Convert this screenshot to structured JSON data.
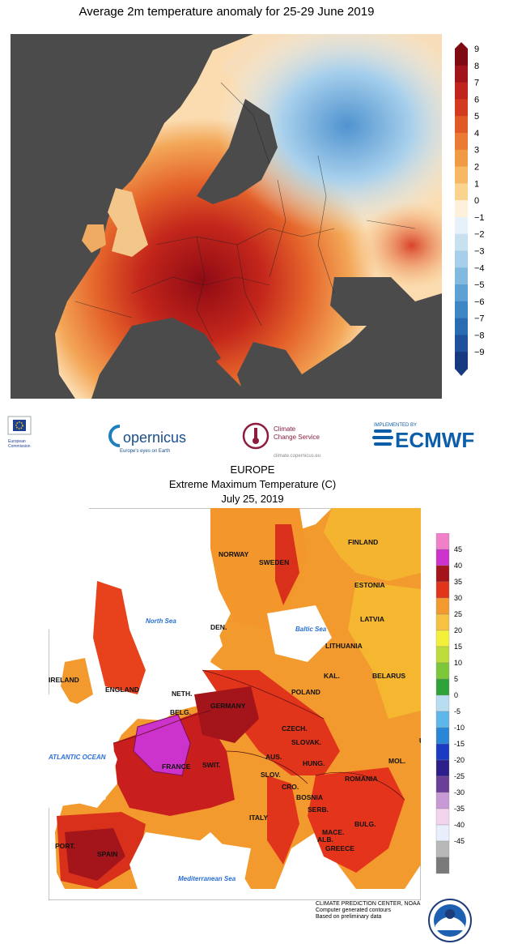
{
  "top_map": {
    "title": "Average 2m temperature anomaly for 25-29 June 2019",
    "unit": "°C",
    "scale_labels": [
      "9",
      "8",
      "7",
      "6",
      "5",
      "4",
      "3",
      "2",
      "1",
      "0",
      "−1",
      "−2",
      "−3",
      "−4",
      "−5",
      "−6",
      "−7",
      "−8",
      "−9"
    ],
    "colors": {
      "hot": "#b30f17",
      "warm": "#e2501e",
      "mild": "#f4a14a",
      "neutral": "#fbe3b8",
      "cool": "#d8ecf7",
      "cold": "#7fb7de",
      "land_mask": "#4d4d4d"
    }
  },
  "logos": {
    "ec": {
      "line1": "European",
      "line2": "Commission"
    },
    "copernicus": {
      "name": "opernicus",
      "tagline": "Europe's eyes on Earth"
    },
    "c3s": {
      "line1": "Climate",
      "line2": "Change Service",
      "url": "climate.copernicus.eu"
    },
    "ecmwf": {
      "implemented": "IMPLEMENTED BY",
      "name": "ECMWF"
    }
  },
  "bottom_map": {
    "region": "EUROPE",
    "title": "Extreme Maximum Temperature (C)",
    "date": "July 25, 2019",
    "scale_labels": [
      "45",
      "40",
      "35",
      "30",
      "25",
      "20",
      "15",
      "10",
      "5",
      "0",
      "-5",
      "-10",
      "-15",
      "-20",
      "-25",
      "-30",
      "-35",
      "-40",
      "-45"
    ],
    "country_labels": [
      "FINLAND",
      "NORWAY",
      "SWEDEN",
      "ESTONIA",
      "LATVIA",
      "North Sea",
      "Baltic Sea",
      "DEN.",
      "LITHUANIA",
      "KAL.",
      "IRELAND",
      "ENGLAND",
      "BELARUS",
      "NETH.",
      "POLAND",
      "BELG.",
      "GERMANY",
      "CZECH.",
      "ATLANTIC OCEAN",
      "SLOVAK.",
      "UK",
      "AUS.",
      "MOL.",
      "SWIT.",
      "HUNG.",
      "FRANCE",
      "SLOV.",
      "ROMANIA",
      "CRO.",
      "BOSNIA",
      "SERB.",
      "ITALY",
      "BULG.",
      "MACE.",
      "PORT.",
      "SPAIN",
      "ALB.",
      "GREECE",
      "Mediterranean Sea"
    ],
    "credit": {
      "line1": "CLIMATE PREDICTION CENTER, NOAA",
      "line2": "Computer generated contours",
      "line3": "Based on preliminary data"
    }
  }
}
